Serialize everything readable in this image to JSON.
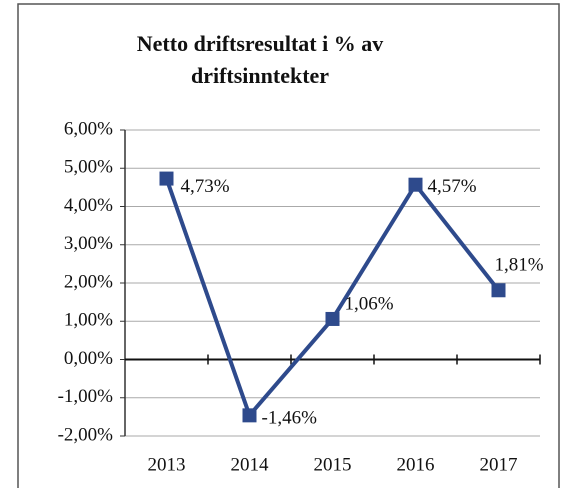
{
  "chart_data": {
    "type": "line",
    "title": "Netto driftsresultat i % av driftsinntekter",
    "categories": [
      "2013",
      "2014",
      "2015",
      "2016",
      "2017"
    ],
    "series": [
      {
        "name": "Netto driftsresultat",
        "color": "#2e4a8c",
        "values": [
          4.73,
          -1.46,
          1.06,
          4.57,
          1.81
        ],
        "value_labels": [
          "4,73%",
          "-1,46%",
          "1,06%",
          "4,57%",
          "1,81%"
        ]
      }
    ],
    "ylim": [
      -2,
      6
    ],
    "yticks": [
      {
        "value": -2,
        "label": "-2,00%"
      },
      {
        "value": -1,
        "label": "-1,00%"
      },
      {
        "value": 0,
        "label": "0,00%"
      },
      {
        "value": 1,
        "label": "1,00%"
      },
      {
        "value": 2,
        "label": "2,00%"
      },
      {
        "value": 3,
        "label": "3,00%"
      },
      {
        "value": 4,
        "label": "4,00%"
      },
      {
        "value": 5,
        "label": "5,00%"
      },
      {
        "value": 6,
        "label": "6,00%"
      }
    ],
    "grid": true
  }
}
